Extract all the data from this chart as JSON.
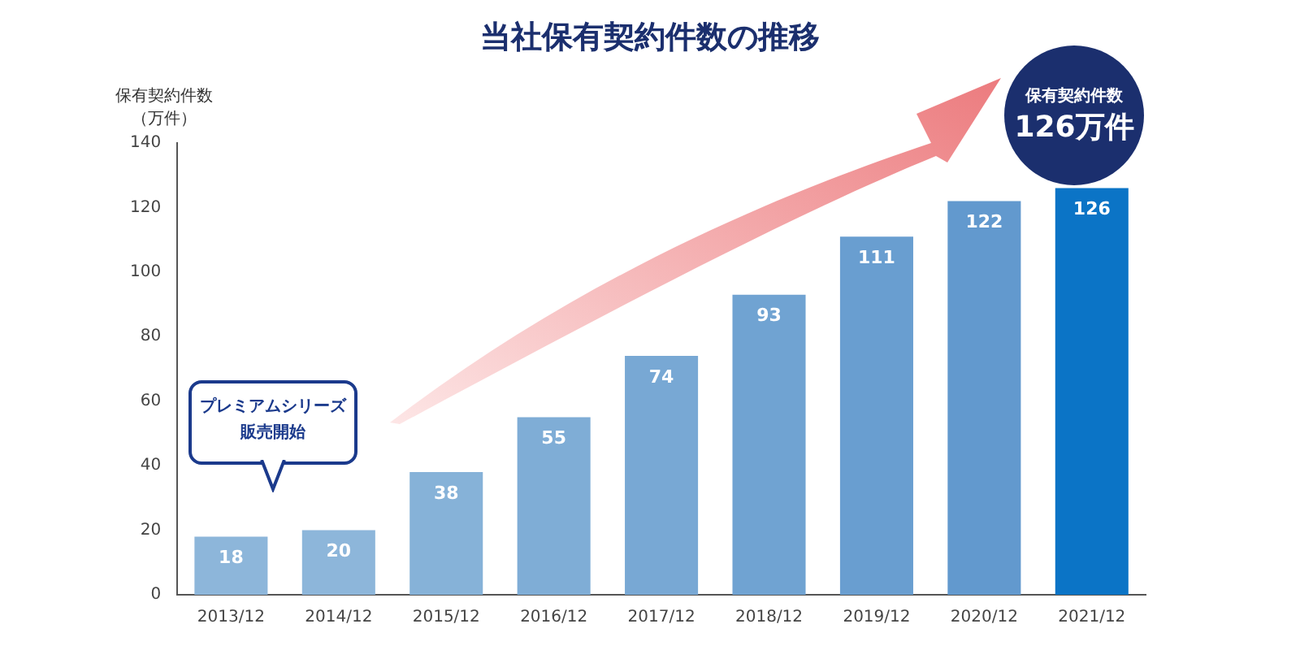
{
  "chart_data": {
    "type": "bar",
    "title": "当社保有契約件数の推移",
    "ylabel": "保有契約件数（万件）",
    "categories": [
      "2013/12",
      "2014/12",
      "2015/12",
      "2016/12",
      "2017/12",
      "2018/12",
      "2019/12",
      "2020/12",
      "2021/12"
    ],
    "values": [
      18,
      20,
      38,
      55,
      74,
      93,
      111,
      122,
      126
    ],
    "colors": [
      "#8db6da",
      "#8db6da",
      "#86b2d8",
      "#7fadd6",
      "#78a8d4",
      "#70a3d2",
      "#699ed0",
      "#6299ce",
      "#0b74c6"
    ],
    "ylim": [
      0,
      140
    ],
    "yticks": [
      0,
      20,
      40,
      60,
      80,
      100,
      120,
      140
    ],
    "grid": false,
    "legend": false,
    "data_labels": true,
    "annotations": [
      "プレミアムシリーズ販売開始",
      "保有契約件数\n126万件"
    ]
  }
}
